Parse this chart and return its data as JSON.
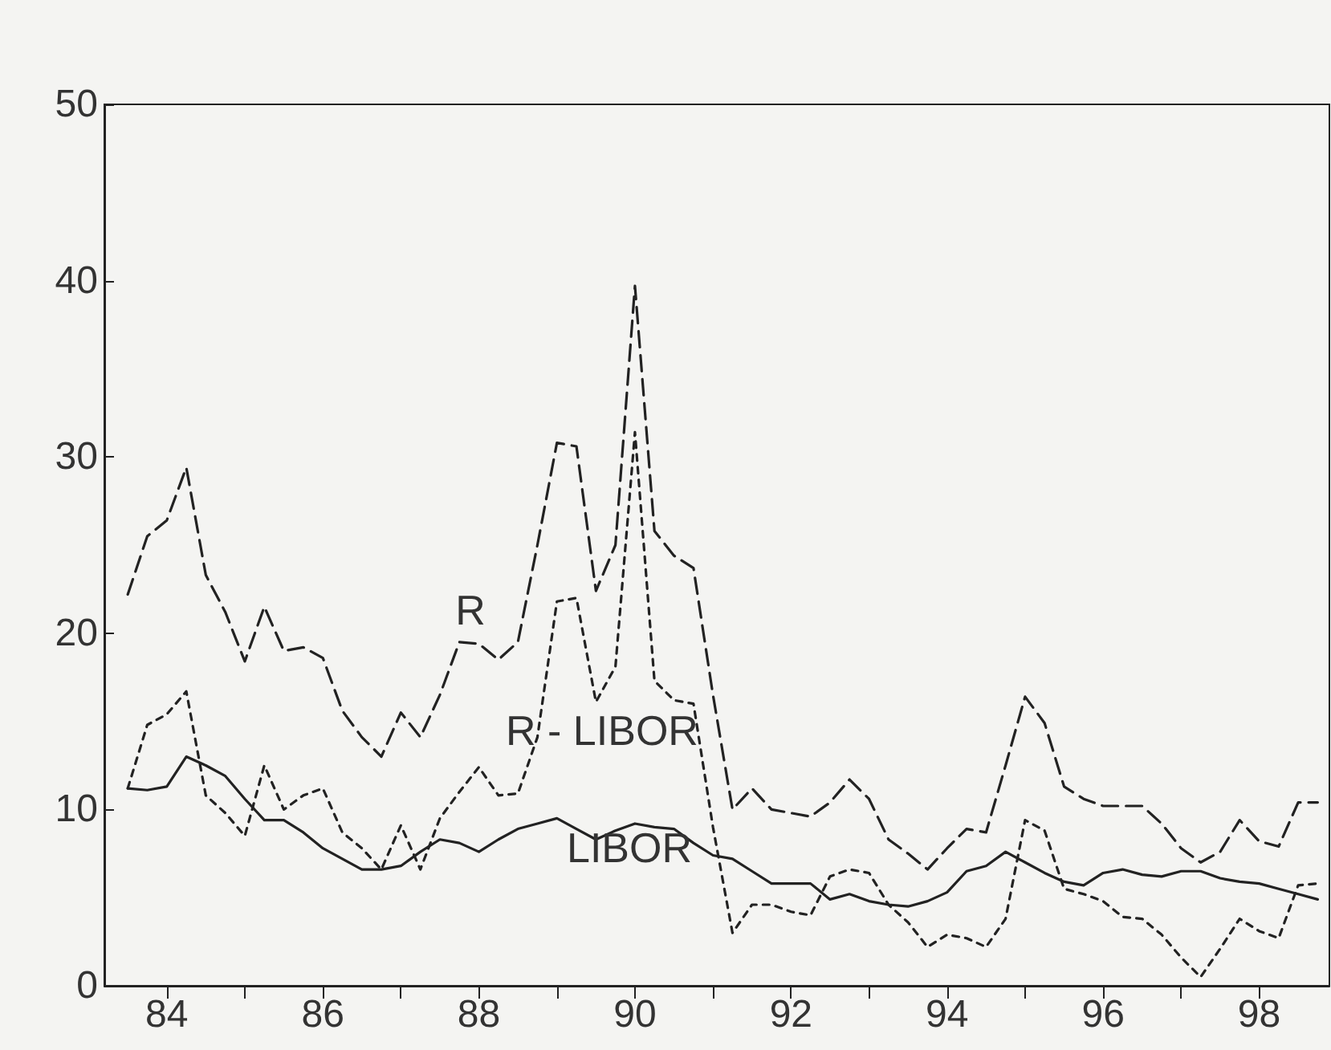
{
  "chart_data": {
    "type": "line",
    "x": [
      83.5,
      83.75,
      84,
      84.25,
      84.5,
      84.75,
      85,
      85.25,
      85.5,
      85.75,
      86,
      86.25,
      86.5,
      86.75,
      87,
      87.25,
      87.5,
      87.75,
      88,
      88.25,
      88.5,
      88.75,
      89,
      89.25,
      89.5,
      89.75,
      90,
      90.25,
      90.5,
      90.75,
      91,
      91.25,
      91.5,
      91.75,
      92,
      92.25,
      92.5,
      92.75,
      93,
      93.25,
      93.5,
      93.75,
      94,
      94.25,
      94.5,
      94.75,
      95,
      95.25,
      95.5,
      95.75,
      96,
      96.25,
      96.5,
      96.75,
      97,
      97.25,
      97.5,
      97.75,
      98,
      98.25,
      98.5,
      98.75
    ],
    "series": [
      {
        "name": "R",
        "color": "#222222",
        "line_style": "dashed",
        "values": [
          22.2,
          25.5,
          26.4,
          29.4,
          23.3,
          21.2,
          18.4,
          21.5,
          19.0,
          19.2,
          18.6,
          15.6,
          14.1,
          13.0,
          15.5,
          14.1,
          16.5,
          19.5,
          19.4,
          18.5,
          19.5,
          25.0,
          30.8,
          30.6,
          22.4,
          25.0,
          39.7,
          25.8,
          24.4,
          23.7,
          16.5,
          10.0,
          11.2,
          10.0,
          9.8,
          9.6,
          10.4,
          11.7,
          10.6,
          8.3,
          7.5,
          6.6,
          7.8,
          8.9,
          8.7,
          12.5,
          16.4,
          14.9,
          11.3,
          10.6,
          10.2,
          10.2,
          10.2,
          9.2,
          7.8,
          7.0,
          7.6,
          9.4,
          8.2,
          7.9,
          10.4,
          10.4
        ]
      },
      {
        "name": "R - LIBOR",
        "color": "#222222",
        "line_style": "dotted",
        "values": [
          11.2,
          14.8,
          15.4,
          16.7,
          10.8,
          9.8,
          8.5,
          12.5,
          10.0,
          10.8,
          11.2,
          8.7,
          7.8,
          6.6,
          9.1,
          6.6,
          9.5,
          11.0,
          12.4,
          10.8,
          10.9,
          14.1,
          21.8,
          22.0,
          16.1,
          18.1,
          31.4,
          17.3,
          16.2,
          16.0,
          9.0,
          3.0,
          4.6,
          4.6,
          4.2,
          4.0,
          6.2,
          6.6,
          6.4,
          4.6,
          3.6,
          2.2,
          2.9,
          2.7,
          2.2,
          3.8,
          9.4,
          8.8,
          5.5,
          5.2,
          4.8,
          3.9,
          3.8,
          2.9,
          1.6,
          0.5,
          2.1,
          3.8,
          3.1,
          2.7,
          5.7,
          5.8
        ]
      },
      {
        "name": "LIBOR",
        "color": "#222222",
        "line_style": "solid",
        "values": [
          11.2,
          11.1,
          11.3,
          13.0,
          12.5,
          11.9,
          10.6,
          9.4,
          9.4,
          8.7,
          7.8,
          7.2,
          6.6,
          6.6,
          6.8,
          7.6,
          8.3,
          8.1,
          7.6,
          8.3,
          8.9,
          9.2,
          9.5,
          8.9,
          8.3,
          8.8,
          9.2,
          9.0,
          8.9,
          8.1,
          7.4,
          7.2,
          6.5,
          5.8,
          5.8,
          5.8,
          4.9,
          5.2,
          4.8,
          4.6,
          4.5,
          4.8,
          5.3,
          6.5,
          6.8,
          7.6,
          7.0,
          6.4,
          5.9,
          5.7,
          6.4,
          6.6,
          6.3,
          6.2,
          6.5,
          6.5,
          6.1,
          5.9,
          5.8,
          5.5,
          5.2,
          4.9
        ]
      }
    ],
    "xlim": [
      83.2,
      98.9
    ],
    "xticks": [
      84,
      {
        "value": 85,
        "label": null
      },
      86,
      {
        "value": 87,
        "label": null
      },
      88,
      {
        "value": 89,
        "label": null
      },
      90,
      {
        "value": 91,
        "label": null
      },
      92,
      {
        "value": 93,
        "label": null
      },
      94,
      {
        "value": 95,
        "label": null
      },
      96,
      {
        "value": 97,
        "label": null
      },
      98
    ],
    "ylim": [
      0,
      50
    ],
    "yticks": [
      0,
      10,
      20,
      30,
      40,
      50
    ],
    "grid": false,
    "legend": false,
    "marker": "none"
  }
}
